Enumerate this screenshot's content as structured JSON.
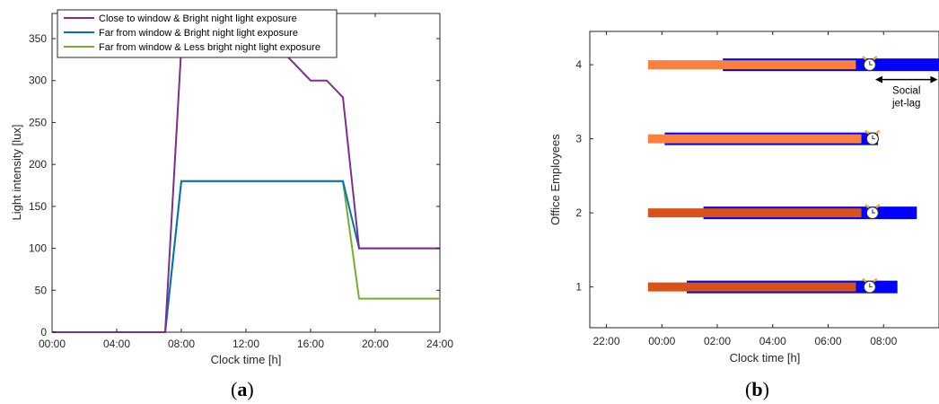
{
  "chart_data": [
    {
      "type": "line",
      "xlabel": "Clock time [h]",
      "ylabel": "Light intensity [lux]",
      "xlim": [
        0,
        24
      ],
      "ylim": [
        0,
        380
      ],
      "xticks": [
        {
          "value": 0,
          "label": "00:00"
        },
        {
          "value": 4,
          "label": "04:00"
        },
        {
          "value": 8,
          "label": "08:00"
        },
        {
          "value": 12,
          "label": "12:00"
        },
        {
          "value": 16,
          "label": "16:00"
        },
        {
          "value": 20,
          "label": "20:00"
        },
        {
          "value": 24,
          "label": "24:00"
        }
      ],
      "yticks": [
        0,
        50,
        100,
        150,
        200,
        250,
        300,
        350
      ],
      "grid": false,
      "legend_position": "top-left",
      "series": [
        {
          "name": "Close to window & Bright night light exposure",
          "color": "#7e2f8e",
          "points": [
            [
              0,
              0
            ],
            [
              7,
              0
            ],
            [
              8,
              340
            ],
            [
              14,
              340
            ],
            [
              16,
              300
            ],
            [
              17,
              300
            ],
            [
              18,
              280
            ],
            [
              19,
              100
            ],
            [
              24,
              100
            ]
          ]
        },
        {
          "name": "Far from window & Bright night light exposure",
          "color": "#0072bd",
          "points": [
            [
              0,
              0
            ],
            [
              7,
              0
            ],
            [
              8,
              180
            ],
            [
              18,
              180
            ],
            [
              19,
              100
            ],
            [
              24,
              100
            ]
          ]
        },
        {
          "name": "Far from window & Less bright night light exposure",
          "color": "#77ac30",
          "points": [
            [
              0,
              0
            ],
            [
              7,
              0
            ],
            [
              8,
              180
            ],
            [
              18,
              180
            ],
            [
              19,
              40
            ],
            [
              24,
              40
            ]
          ]
        }
      ],
      "caption": {
        "open": "(",
        "letter": "a",
        "close": ")"
      }
    },
    {
      "type": "bar",
      "orientation": "horizontal",
      "xlabel": "Clock time [h]",
      "ylabel": "Office Employees",
      "xlim": [
        -2.6,
        10
      ],
      "ylim": [
        0.45,
        4.45
      ],
      "xticks": [
        {
          "value": -2,
          "label": "22:00"
        },
        {
          "value": 0,
          "label": "00:00"
        },
        {
          "value": 2,
          "label": "02:00"
        },
        {
          "value": 4,
          "label": "04:00"
        },
        {
          "value": 6,
          "label": "06:00"
        },
        {
          "value": 8,
          "label": "08:00"
        }
      ],
      "yticks": [
        1,
        2,
        3,
        4
      ],
      "colors": {
        "sleep_window": "#0000ff",
        "light_4_3": "#ff7f3f",
        "light_2_1": "#d95319",
        "alarm_ring": "#f0a830"
      },
      "employees": [
        {
          "id": 1,
          "sleep_start": 0.9,
          "sleep_end": 8.5,
          "light_start": -0.5,
          "light_end": 7.0,
          "alarm": 7.5,
          "light_color": "#d95319"
        },
        {
          "id": 2,
          "sleep_start": 1.5,
          "sleep_end": 9.2,
          "light_start": -0.5,
          "light_end": 7.2,
          "alarm": 7.6,
          "light_color": "#d95319"
        },
        {
          "id": 3,
          "sleep_start": 0.1,
          "sleep_end": 7.8,
          "light_start": -0.5,
          "light_end": 7.2,
          "alarm": 7.6,
          "light_color": "#ff7f3f"
        },
        {
          "id": 4,
          "sleep_start": 2.2,
          "sleep_end": 10.0,
          "light_start": -0.5,
          "light_end": 7.0,
          "alarm": 7.5,
          "light_color": "#ff7f3f"
        }
      ],
      "annotation": {
        "line1": "Social",
        "line2": "jet-lag",
        "from": 7.7,
        "to": 9.95,
        "y": 3.8
      },
      "caption": {
        "open": "(",
        "letter": "b",
        "close": ")"
      }
    }
  ]
}
